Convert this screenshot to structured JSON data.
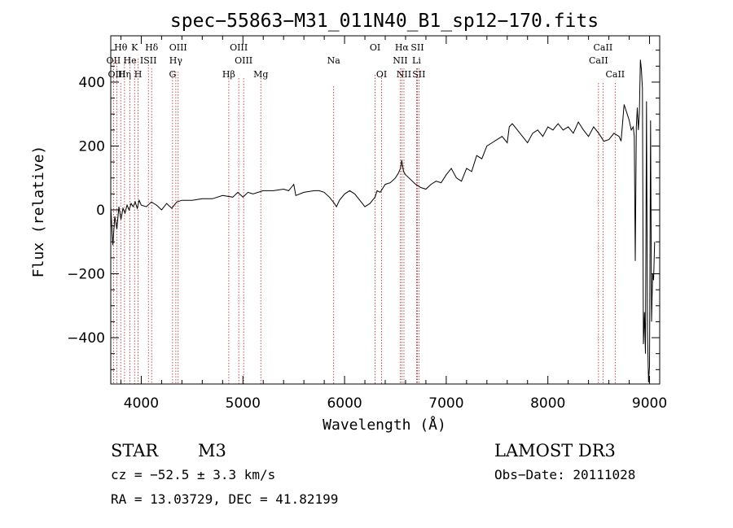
{
  "chart_data": {
    "type": "line",
    "title": "spec−55863−M31_011N40_B1_sp12−170.fits",
    "xlabel": "Wavelength (Å)",
    "ylabel": "Flux (relative)",
    "xlim": [
      3700,
      9100
    ],
    "ylim": [
      -545,
      545
    ],
    "xticks": [
      4000,
      5000,
      6000,
      7000,
      8000,
      9000
    ],
    "xtick_labels": [
      "4000",
      "5000",
      "6000",
      "7000",
      "8000",
      "9000"
    ],
    "yticks": [
      -400,
      -200,
      0,
      200,
      400
    ],
    "ytick_labels": [
      "−400",
      "−200",
      "0",
      "200",
      "400"
    ],
    "colors": {
      "spectrum": "#000000",
      "lines": "#b22222",
      "axes": "#000000"
    },
    "series": [
      {
        "name": "spectrum",
        "x": [
          3700,
          3720,
          3740,
          3760,
          3780,
          3800,
          3820,
          3840,
          3860,
          3880,
          3900,
          3920,
          3940,
          3960,
          3980,
          4000,
          4050,
          4100,
          4150,
          4200,
          4250,
          4300,
          4350,
          4400,
          4500,
          4600,
          4700,
          4800,
          4900,
          4950,
          5000,
          5050,
          5100,
          5200,
          5300,
          5400,
          5450,
          5500,
          5520,
          5600,
          5700,
          5750,
          5800,
          5850,
          5900,
          5920,
          5950,
          6000,
          6050,
          6100,
          6150,
          6200,
          6250,
          6300,
          6320,
          6350,
          6400,
          6450,
          6500,
          6530,
          6550,
          6563,
          6580,
          6600,
          6650,
          6700,
          6750,
          6800,
          6850,
          6900,
          6950,
          7000,
          7050,
          7100,
          7150,
          7200,
          7250,
          7300,
          7350,
          7400,
          7450,
          7500,
          7550,
          7600,
          7620,
          7650,
          7700,
          7750,
          7800,
          7850,
          7900,
          7950,
          8000,
          8050,
          8100,
          8150,
          8200,
          8250,
          8300,
          8350,
          8400,
          8450,
          8500,
          8520,
          8550,
          8600,
          8650,
          8700,
          8720,
          8750,
          8780,
          8800,
          8820,
          8840,
          8850,
          8860,
          8870,
          8880,
          8890,
          8900,
          8910,
          8920,
          8930,
          8940,
          8950,
          8960,
          8970,
          8980,
          8990,
          9000,
          9010,
          9020,
          9030,
          9040,
          9050
        ],
        "y": [
          10,
          -110,
          -20,
          -60,
          10,
          -30,
          5,
          -10,
          15,
          0,
          20,
          10,
          25,
          5,
          30,
          15,
          10,
          25,
          15,
          0,
          20,
          5,
          25,
          30,
          30,
          35,
          35,
          45,
          40,
          55,
          40,
          55,
          50,
          60,
          60,
          65,
          60,
          80,
          45,
          55,
          60,
          60,
          55,
          40,
          20,
          10,
          30,
          50,
          60,
          50,
          30,
          10,
          20,
          40,
          60,
          55,
          80,
          85,
          100,
          115,
          130,
          155,
          120,
          110,
          95,
          80,
          70,
          65,
          80,
          90,
          85,
          110,
          130,
          100,
          90,
          130,
          120,
          170,
          160,
          200,
          210,
          220,
          230,
          210,
          260,
          270,
          250,
          230,
          210,
          240,
          250,
          230,
          260,
          250,
          270,
          250,
          260,
          240,
          275,
          250,
          230,
          260,
          240,
          230,
          215,
          220,
          240,
          230,
          215,
          330,
          300,
          280,
          250,
          260,
          230,
          -160,
          260,
          320,
          250,
          300,
          470,
          440,
          380,
          -420,
          -320,
          -450,
          340,
          -380,
          -540,
          -490,
          280,
          -350,
          -200,
          -220,
          -100
        ]
      }
    ],
    "lines": [
      {
        "label": "Hθ",
        "wl": 3798,
        "row": 1,
        "hi": 58,
        "lo": 58
      },
      {
        "label": "OII",
        "wl": 3727,
        "row": 2,
        "hi": 30,
        "lo": 30
      },
      {
        "label": "OIII",
        "wl": 3760,
        "row": 3,
        "hi": 30,
        "lo": 30
      },
      {
        "label": "K",
        "wl": 3934,
        "row": 1,
        "hi": 28,
        "lo": 28
      },
      {
        "label": "He",
        "wl": 3889,
        "row": 2,
        "hi": 28,
        "lo": 28
      },
      {
        "label": "Hη",
        "wl": 3835,
        "row": 3,
        "hi": 28,
        "lo": 28
      },
      {
        "label": "H",
        "wl": 3969,
        "row": 3,
        "hi": 28,
        "lo": 28
      },
      {
        "label": "Hδ",
        "wl": 4102,
        "row": 1,
        "hi": 40,
        "lo": 40
      },
      {
        "label": "ISII",
        "wl": 4070,
        "row": 2,
        "hi": 32,
        "lo": 32
      },
      {
        "label": "OIII",
        "wl": 4363,
        "row": 1,
        "hi": 44,
        "lo": 44
      },
      {
        "label": "Hγ",
        "wl": 4340,
        "row": 2,
        "hi": 44,
        "lo": 44
      },
      {
        "label": "G",
        "wl": 4308,
        "row": 3,
        "hi": 44,
        "lo": 44
      },
      {
        "label": "OIII",
        "wl": 4959,
        "row": 1,
        "hi": 52,
        "lo": 52
      },
      {
        "label": "OIII",
        "wl": 5007,
        "row": 2,
        "hi": 52,
        "lo": 52
      },
      {
        "label": "Hβ",
        "wl": 4861,
        "row": 3,
        "hi": 52,
        "lo": 52
      },
      {
        "label": "Mg",
        "wl": 5176,
        "row": 3,
        "hi": 52,
        "lo": 52
      },
      {
        "label": "Na",
        "wl": 5893,
        "row": 2,
        "hi": 62,
        "lo": 62
      },
      {
        "label": "OI",
        "wl": 6300,
        "row": 1,
        "hi": 48,
        "lo": 48
      },
      {
        "label": "OI",
        "wl": 6364,
        "row": 3,
        "hi": 48,
        "lo": 48
      },
      {
        "label": "Hα",
        "wl": 6563,
        "row": 1,
        "hi": 40,
        "lo": 40
      },
      {
        "label": "NII",
        "wl": 6548,
        "row": 2,
        "hi": 40,
        "lo": 40
      },
      {
        "label": "NII",
        "wl": 6584,
        "row": 3,
        "hi": 40,
        "lo": 40
      },
      {
        "label": "SII",
        "wl": 6716,
        "row": 1,
        "hi": 40,
        "lo": 40
      },
      {
        "label": "Li",
        "wl": 6708,
        "row": 2,
        "hi": 40,
        "lo": 40
      },
      {
        "label": "SII",
        "wl": 6731,
        "row": 3,
        "hi": 40,
        "lo": 40
      },
      {
        "label": "CaII",
        "wl": 8542,
        "row": 1,
        "hi": 58,
        "lo": 58
      },
      {
        "label": "CaII",
        "wl": 8498,
        "row": 2,
        "hi": 58,
        "lo": 58
      },
      {
        "label": "CaII",
        "wl": 8662,
        "row": 3,
        "hi": 58,
        "lo": 58
      }
    ]
  },
  "info": {
    "class": "STAR",
    "subclass": "M3",
    "survey": "LAMOST DR3",
    "cz": "cz = −52.5 ± 3.3 km/s",
    "obs_date": "Obs−Date: 20111028",
    "coords": "RA =  13.03729, DEC =  41.82199"
  }
}
